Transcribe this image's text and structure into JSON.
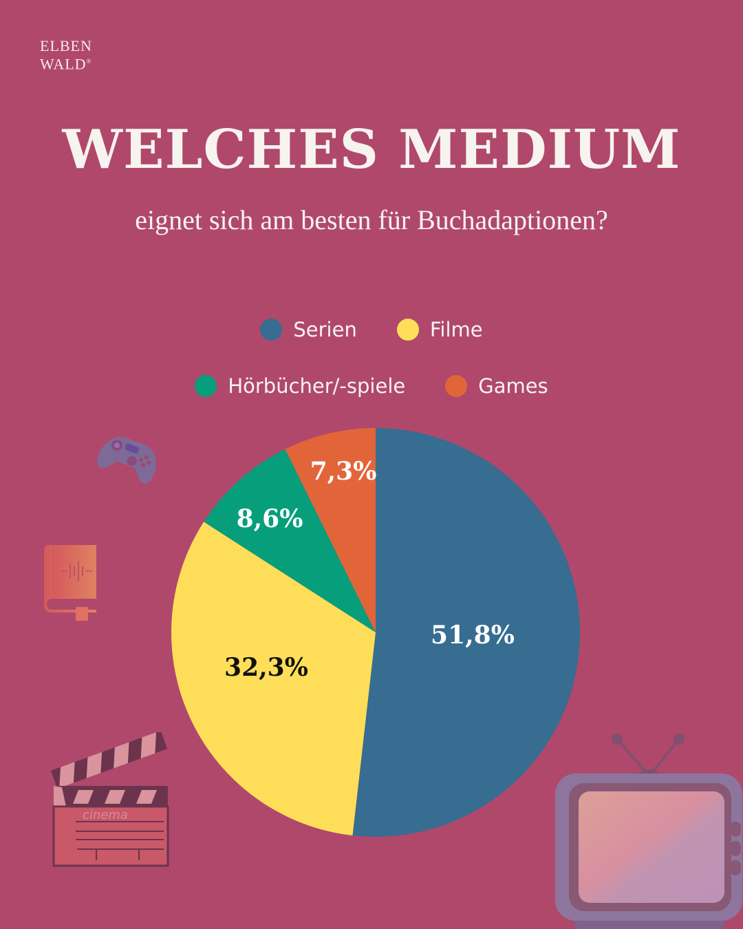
{
  "logo": {
    "line1": "ELBEN",
    "line2": "WALD",
    "reg": "®"
  },
  "header": {
    "title": "WELCHES MEDIUM",
    "subtitle": "eignet sich am besten für Buchadaptionen?"
  },
  "legend": [
    {
      "label": "Serien",
      "color": "#366d91"
    },
    {
      "label": "Filme",
      "color": "#fede58"
    },
    {
      "label": "Hörbücher/-spiele",
      "color": "#079e7b"
    },
    {
      "label": "Games",
      "color": "#e2653a"
    }
  ],
  "labels": {
    "serien": "51,8%",
    "filme": "32,3%",
    "hoerbuecher": "8,6%",
    "games": "7,3%"
  },
  "icons": [
    "gamepad-icon",
    "audiobook-icon",
    "clapperboard-icon",
    "tv-icon"
  ],
  "clapper_text": "cinema",
  "colors": {
    "background": "#b0486c",
    "text": "#f7f3ef"
  },
  "chart_data": {
    "type": "pie",
    "title": "WELCHES MEDIUM eignet sich am besten für Buchadaptionen?",
    "categories": [
      "Serien",
      "Filme",
      "Hörbücher/-spiele",
      "Games"
    ],
    "values": [
      51.8,
      32.3,
      8.6,
      7.3
    ],
    "unit": "%",
    "colors": [
      "#366d91",
      "#fede58",
      "#079e7b",
      "#e2653a"
    ],
    "start_angle": "12 o'clock, clockwise",
    "legend_position": "top"
  }
}
